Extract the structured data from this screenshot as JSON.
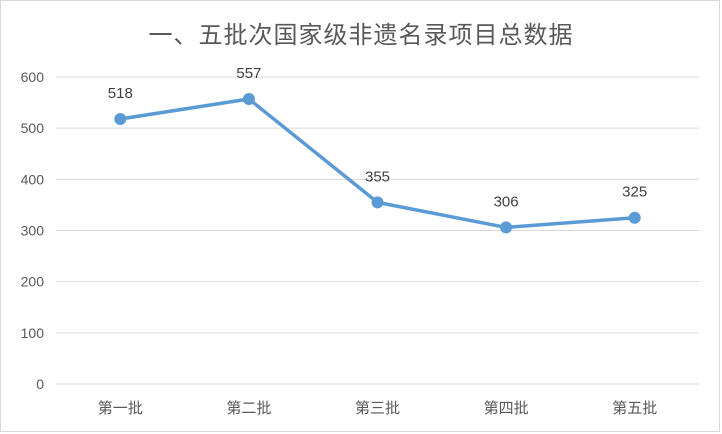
{
  "chart_data": {
    "type": "line",
    "title": "一、五批次国家级非遗名录项目总数据",
    "categories": [
      "第一批",
      "第二批",
      "第三批",
      "第四批",
      "第五批"
    ],
    "series": [
      {
        "values": [
          518,
          557,
          355,
          306,
          325
        ],
        "data_labels": [
          "518",
          "557",
          "355",
          "306",
          "325"
        ],
        "color": "#5b9bd5"
      }
    ],
    "y_ticks": [
      0,
      100,
      200,
      300,
      400,
      500,
      600
    ],
    "y_tick_labels": [
      "0",
      "100",
      "200",
      "300",
      "400",
      "500",
      "600"
    ],
    "ylim": [
      0,
      600
    ],
    "grid": true,
    "legend": "none"
  }
}
